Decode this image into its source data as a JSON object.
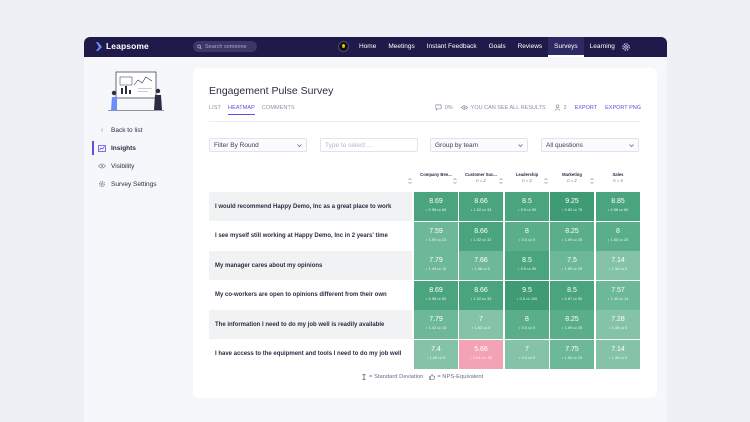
{
  "app": {
    "name": "Leapsome"
  },
  "search": {
    "placeholder": "Search someone"
  },
  "nav": [
    "Home",
    "Meetings",
    "Instant Feedback",
    "Goals",
    "Reviews",
    "Surveys",
    "Learning"
  ],
  "nav_active": "Surveys",
  "sidebar": {
    "items": [
      {
        "label": "Back to list",
        "icon": "chevron-left-icon"
      },
      {
        "label": "Insights",
        "icon": "chart-icon",
        "active": true
      },
      {
        "label": "Visibility",
        "icon": "eye-icon"
      },
      {
        "label": "Survey Settings",
        "icon": "gear-icon"
      }
    ]
  },
  "survey": {
    "title": "Engagement Pulse Survey",
    "tabs": [
      "LIST",
      "HEATMAP",
      "COMMENTS"
    ],
    "active_tab": "HEATMAP",
    "comments_count": "0%",
    "visibility_text": "YOU CAN SEE ALL RESULTS",
    "people_count": "2",
    "export_label": "EXPORT",
    "export_png_label": "EXPORT PNG"
  },
  "filters": {
    "round": "Filter By Round",
    "type_placeholder": "Type to select ...",
    "group": "Group by team",
    "questions": "All questions"
  },
  "columns": [
    {
      "name": "Company Ben...",
      "n": ""
    },
    {
      "name": "Customer Suc...",
      "n": "n = 2"
    },
    {
      "name": "Leadership",
      "n": "n = 2"
    },
    {
      "name": "Marketing",
      "n": "n = 2"
    },
    {
      "name": "Sales",
      "n": "n = 4"
    }
  ],
  "rows": [
    {
      "question": "I would recommend Happy Demo, Inc as a great place to work",
      "cells": [
        {
          "value": "8.69",
          "sd": "0.98",
          "nps": "60"
        },
        {
          "value": "8.66",
          "sd": "1.02",
          "nps": "33"
        },
        {
          "value": "8.5",
          "sd": "0.5",
          "nps": "50"
        },
        {
          "value": "9.25",
          "sd": "0.83",
          "nps": "75"
        },
        {
          "value": "8.85",
          "sd": "0.98",
          "nps": "60"
        }
      ]
    },
    {
      "question": "I see myself still working at Happy Demo, Inc in 2 years' time",
      "cells": [
        {
          "value": "7.59",
          "sd": "1.90",
          "nps": "23"
        },
        {
          "value": "8.66",
          "sd": "1.02",
          "nps": "33"
        },
        {
          "value": "8",
          "sd": "0.0",
          "nps": "0"
        },
        {
          "value": "8.25",
          "sd": "1.09",
          "nps": "25"
        },
        {
          "value": "8",
          "sd": "1.60",
          "nps": "20"
        }
      ]
    },
    {
      "question": "My manager cares about my opinions",
      "cells": [
        {
          "value": "7.79",
          "sd": "1.49",
          "nps": "10"
        },
        {
          "value": "7.66",
          "sd": "1.06",
          "nps": "0"
        },
        {
          "value": "8.5",
          "sd": "0.5",
          "nps": "50"
        },
        {
          "value": "7.5",
          "sd": "1.50",
          "nps": "25"
        },
        {
          "value": "7.14",
          "sd": "1.36",
          "nps": "0"
        }
      ]
    },
    {
      "question": "My co-workers are open to opinions different from their own",
      "cells": [
        {
          "value": "8.69",
          "sd": "0.98",
          "nps": "60"
        },
        {
          "value": "8.66",
          "sd": "1.02",
          "nps": "33"
        },
        {
          "value": "9.5",
          "sd": "0.5",
          "nps": "100"
        },
        {
          "value": "8.5",
          "sd": "0.87",
          "nps": "50"
        },
        {
          "value": "7.57",
          "sd": "1.40",
          "nps": "14"
        }
      ]
    },
    {
      "question": "The information I need to do my job well is readily available",
      "cells": [
        {
          "value": "7.79",
          "sd": "1.42",
          "nps": "10"
        },
        {
          "value": "7",
          "sd": "1.63",
          "nps": "0"
        },
        {
          "value": "8",
          "sd": "0.0",
          "nps": "0"
        },
        {
          "value": "8.25",
          "sd": "1.09",
          "nps": "25"
        },
        {
          "value": "7.28",
          "sd": "1.48",
          "nps": "0"
        }
      ]
    },
    {
      "question": "I have access to the equipment and tools I need to do my job well",
      "cells": [
        {
          "value": "7.4",
          "sd": "1.69",
          "nps": "0"
        },
        {
          "value": "5.66",
          "sd": "1.24",
          "nps": "-33"
        },
        {
          "value": "7",
          "sd": "0.0",
          "nps": "0"
        },
        {
          "value": "7.75",
          "sd": "1.50",
          "nps": "25"
        },
        {
          "value": "7.14",
          "sd": "1.36",
          "nps": "0"
        }
      ]
    }
  ],
  "legend": {
    "sd": "= Standard Deviation",
    "nps": "= NPS-Equivalent"
  },
  "colors": {
    "nav_bg": "#1e1b4b",
    "accent": "#5b50e0",
    "negative": "#f3a3b3"
  }
}
